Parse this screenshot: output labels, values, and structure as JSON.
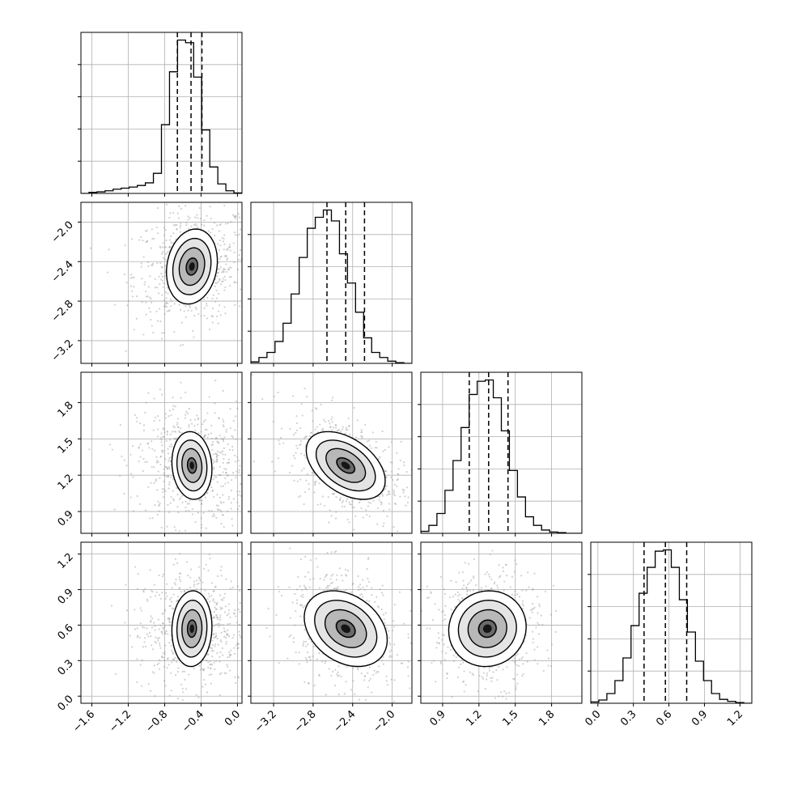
{
  "chart_data": {
    "type": "corner",
    "grid": true,
    "axis_tick_labels": {
      "x": [
        [
          "−1.6",
          "−1.2",
          "−0.8",
          "−0.4",
          "0.0"
        ],
        [
          "−3.2",
          "−2.8",
          "−2.4",
          "−2.0"
        ],
        [
          "0.9",
          "1.2",
          "1.5",
          "1.8"
        ],
        [
          "0.0",
          "0.3",
          "0.6",
          "0.9",
          "1.2"
        ]
      ],
      "y": [
        [],
        [
          "−2.0",
          "−2.4",
          "−2.8",
          "−3.2"
        ],
        [
          "1.8",
          "1.5",
          "1.2",
          "0.9"
        ],
        [
          "1.2",
          "0.9",
          "0.6",
          "0.3",
          "0.0"
        ]
      ]
    },
    "params": [
      {
        "range": [
          -1.72,
          0.05
        ],
        "ticks": [
          -1.6,
          -1.2,
          -0.8,
          -0.4,
          0.0
        ],
        "quantiles": [
          -0.66,
          -0.51,
          -0.39
        ]
      },
      {
        "range": [
          -3.43,
          -1.8
        ],
        "ticks": [
          -3.2,
          -2.8,
          -2.4,
          -2.0
        ],
        "quantiles": [
          -2.66,
          -2.47,
          -2.28
        ]
      },
      {
        "range": [
          0.72,
          2.05
        ],
        "ticks": [
          0.9,
          1.2,
          1.5,
          1.8
        ],
        "quantiles": [
          1.12,
          1.28,
          1.44
        ]
      },
      {
        "range": [
          -0.06,
          1.3
        ],
        "ticks": [
          0.0,
          0.3,
          0.6,
          0.9,
          1.2
        ],
        "quantiles": [
          0.39,
          0.57,
          0.75
        ]
      }
    ],
    "marginals": [
      {
        "edges_range": [
          -1.72,
          0.05
        ],
        "counts": [
          0,
          2,
          3,
          5,
          8,
          10,
          12,
          15,
          20,
          38,
          130,
          230,
          290,
          285,
          220,
          120,
          50,
          18,
          5,
          1
        ]
      },
      {
        "edges_range": [
          -3.43,
          -1.8
        ],
        "counts": [
          2,
          8,
          15,
          30,
          55,
          95,
          145,
          185,
          200,
          210,
          195,
          150,
          110,
          70,
          35,
          15,
          8,
          3,
          1,
          0
        ]
      },
      {
        "edges_range": [
          0.72,
          2.05
        ],
        "counts": [
          3,
          12,
          30,
          65,
          110,
          160,
          210,
          230,
          232,
          205,
          155,
          95,
          55,
          25,
          12,
          5,
          2,
          1,
          0,
          0
        ]
      },
      {
        "edges_range": [
          -0.06,
          1.3
        ],
        "counts": [
          2,
          5,
          15,
          35,
          70,
          120,
          170,
          210,
          235,
          237,
          210,
          160,
          110,
          65,
          35,
          15,
          6,
          3,
          1,
          0
        ]
      }
    ],
    "pairs": [
      {
        "x_param": 0,
        "y_param": 1,
        "mean": [
          -0.5,
          -2.45
        ],
        "sd": [
          0.14,
          0.19
        ],
        "corr": 0.15,
        "scatter_sd": [
          0.32,
          0.3
        ]
      },
      {
        "x_param": 0,
        "y_param": 2,
        "mean": [
          -0.5,
          1.28
        ],
        "sd": [
          0.11,
          0.14
        ],
        "corr": -0.1,
        "scatter_sd": [
          0.3,
          0.25
        ]
      },
      {
        "x_param": 1,
        "y_param": 2,
        "mean": [
          -2.47,
          1.28
        ],
        "sd": [
          0.2,
          0.14
        ],
        "corr": -0.45,
        "scatter_sd": [
          0.28,
          0.22
        ]
      },
      {
        "x_param": 0,
        "y_param": 3,
        "mean": [
          -0.5,
          0.57
        ],
        "sd": [
          0.11,
          0.16
        ],
        "corr": 0.05,
        "scatter_sd": [
          0.3,
          0.26
        ]
      },
      {
        "x_param": 1,
        "y_param": 3,
        "mean": [
          -2.47,
          0.57
        ],
        "sd": [
          0.21,
          0.16
        ],
        "corr": -0.3,
        "scatter_sd": [
          0.28,
          0.25
        ]
      },
      {
        "x_param": 2,
        "y_param": 3,
        "mean": [
          1.27,
          0.57
        ],
        "sd": [
          0.16,
          0.16
        ],
        "corr": 0.05,
        "scatter_sd": [
          0.22,
          0.24
        ]
      }
    ],
    "contour_levels_sigma": [
      0.5,
      1.0,
      1.5,
      2.0
    ]
  }
}
